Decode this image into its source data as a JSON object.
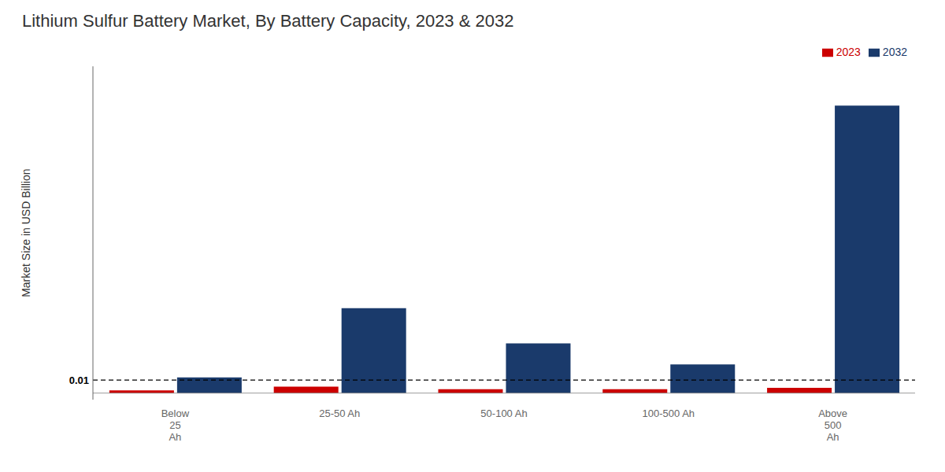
{
  "chart_data": {
    "type": "bar",
    "title": "Lithium Sulfur Battery Market, By Battery Capacity, 2023 & 2032",
    "ylabel": "Market Size in USD Billion",
    "categories": [
      "Below\n25\nAh",
      "25-50 Ah",
      "50-100 Ah",
      "100-500 Ah",
      "Above\n500\nAh"
    ],
    "series": [
      {
        "name": "2023",
        "color": "#cc0000",
        "values": [
          0.002,
          0.005,
          0.003,
          0.003,
          0.004
        ]
      },
      {
        "name": "2032",
        "color": "#1a3a6b",
        "values": [
          0.012,
          0.065,
          0.038,
          0.022,
          0.22
        ]
      }
    ],
    "ylim": [
      -0.005,
      0.25
    ],
    "tick_labels": "x",
    "grid": false,
    "legend": "top",
    "hlines": [
      {
        "y": 0.01,
        "label": "0.01",
        "line_style": "dashed",
        "color": "black"
      },
      {
        "y": 0,
        "line_style": "solid",
        "color": "gray"
      }
    ]
  }
}
